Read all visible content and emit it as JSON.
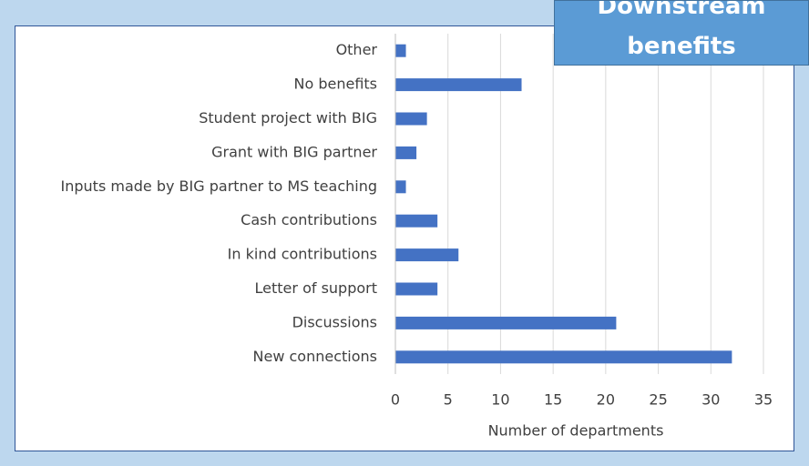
{
  "chart_data": {
    "type": "bar",
    "orientation": "horizontal",
    "title": "Downstream benefits",
    "categories": [
      "Other",
      "No benefits",
      "Student project with BIG",
      "Grant with BIG partner",
      "Inputs made by BIG partner to MS teaching",
      "Cash contributions",
      "In kind contributions",
      "Letter of support",
      "Discussions",
      "New connections"
    ],
    "values": [
      1,
      12,
      3,
      2,
      1,
      4,
      6,
      4,
      21,
      32
    ],
    "color": "#4472c4",
    "xlabel": "Number of departments",
    "xlim": [
      0,
      35
    ],
    "xticks": [
      0,
      5,
      10,
      15,
      20,
      25,
      30,
      35
    ],
    "grid": true
  }
}
